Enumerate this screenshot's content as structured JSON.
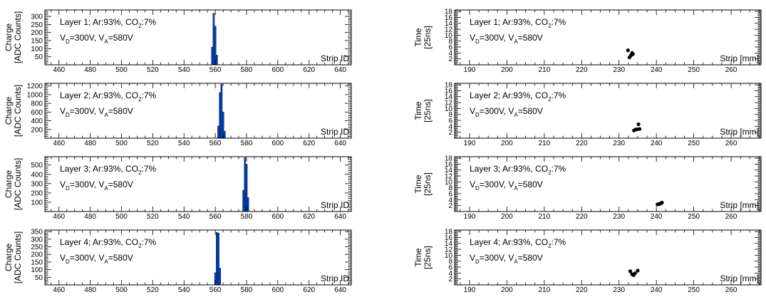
{
  "figure": {
    "colors": {
      "bar": "#0047c8",
      "point": "#000000",
      "frame": "#000000"
    }
  },
  "chart_data": [
    {
      "type": "bar",
      "panel": "layer1-charge",
      "ylabel_line1": "Charge",
      "ylabel_line2": "[ADC Counts]",
      "xlabel": "Strip ID",
      "xlim": [
        451,
        647
      ],
      "ylim": [
        0,
        340
      ],
      "xticks": [
        460,
        480,
        500,
        520,
        540,
        560,
        580,
        600,
        620,
        640
      ],
      "yticks": [
        50,
        100,
        150,
        200,
        250,
        300
      ],
      "annotation": {
        "layer": "Layer 1; Ar:93%, CO",
        "co2_sub": "2",
        "co2_pct": ":7%",
        "vd": "V",
        "vd_sub": "D",
        "vd_val": "=300V, V",
        "va_sub": "A",
        "va_val": "=580V"
      },
      "bars": [
        [
          558,
          110
        ],
        [
          559,
          320
        ],
        [
          560,
          240
        ],
        [
          561,
          60
        ]
      ]
    },
    {
      "type": "bar",
      "panel": "layer2-charge",
      "ylabel_line1": "Charge",
      "ylabel_line2": "[ADC Counts]",
      "xlabel": "Strip ID",
      "xlim": [
        451,
        647
      ],
      "ylim": [
        0,
        1260
      ],
      "xticks": [
        460,
        480,
        500,
        520,
        540,
        560,
        580,
        600,
        620,
        640
      ],
      "yticks": [
        200,
        400,
        600,
        800,
        1000,
        1200
      ],
      "annotation": {
        "layer": "Layer 2; Ar:93%, CO",
        "co2_sub": "2",
        "co2_pct": ":7%",
        "vd": "V",
        "vd_sub": "D",
        "vd_val": "=300V, V",
        "va_sub": "A",
        "va_val": "=580V"
      },
      "bars": [
        [
          562,
          280
        ],
        [
          563,
          1050
        ],
        [
          564,
          1240
        ],
        [
          565,
          600
        ],
        [
          566,
          160
        ]
      ]
    },
    {
      "type": "bar",
      "panel": "layer3-charge",
      "ylabel_line1": "Charge",
      "ylabel_line2": "[ADC Counts]",
      "xlabel": "Strip ID",
      "xlim": [
        451,
        647
      ],
      "ylim": [
        0,
        590
      ],
      "xticks": [
        460,
        480,
        500,
        520,
        540,
        560,
        580,
        600,
        620,
        640
      ],
      "yticks": [
        100,
        200,
        300,
        400,
        500
      ],
      "annotation": {
        "layer": "Layer 3; Ar:93%, CO",
        "co2_sub": "2",
        "co2_pct": ":7%",
        "vd": "V",
        "vd_sub": "D",
        "vd_val": "=300V, V",
        "va_sub": "A",
        "va_val": "=580V"
      },
      "bars": [
        [
          578,
          230
        ],
        [
          579,
          580
        ],
        [
          580,
          510
        ],
        [
          581,
          150
        ]
      ]
    },
    {
      "type": "bar",
      "panel": "layer4-charge",
      "ylabel_line1": "Charge",
      "ylabel_line2": "[ADC Counts]",
      "xlabel": "Strip ID",
      "xlim": [
        451,
        647
      ],
      "ylim": [
        0,
        360
      ],
      "xticks": [
        460,
        480,
        500,
        520,
        540,
        560,
        580,
        600,
        620,
        640
      ],
      "yticks": [
        50,
        100,
        150,
        200,
        250,
        300,
        350
      ],
      "annotation": {
        "layer": "Layer 4; Ar:93%, CO",
        "co2_sub": "2",
        "co2_pct": ":7%",
        "vd": "V",
        "vd_sub": "D",
        "vd_val": "=300V, V",
        "va_sub": "A",
        "va_val": "=580V"
      },
      "bars": [
        [
          560,
          80
        ],
        [
          561,
          345
        ],
        [
          562,
          340
        ],
        [
          563,
          110
        ]
      ]
    },
    {
      "type": "scatter",
      "panel": "layer1-time",
      "ylabel_line1": "Time",
      "ylabel_line2": "[25ns]",
      "xlabel": "Strip [mm]",
      "xlim": [
        186,
        268
      ],
      "ylim": [
        0,
        18.5
      ],
      "xticks": [
        190,
        200,
        210,
        220,
        230,
        240,
        250,
        260
      ],
      "yticks": [
        2,
        4,
        6,
        8,
        10,
        12,
        14,
        16,
        18
      ],
      "annotation": {
        "layer": "Layer 1; Ar:93%, CO",
        "co2_sub": "2",
        "co2_pct": ":7%",
        "vd": "V",
        "vd_sub": "D",
        "vd_val": "=300V, V",
        "va_sub": "A",
        "va_val": "=580V"
      },
      "points": [
        [
          232.4,
          4.9
        ],
        [
          232.8,
          2.5
        ],
        [
          233.2,
          3.2
        ],
        [
          233.5,
          4.0
        ],
        [
          233.7,
          3.6
        ]
      ]
    },
    {
      "type": "scatter",
      "panel": "layer2-time",
      "ylabel_line1": "Time",
      "ylabel_line2": "[25ns]",
      "xlabel": "Strip [mm]",
      "xlim": [
        186,
        268
      ],
      "ylim": [
        0,
        18.5
      ],
      "xticks": [
        190,
        200,
        210,
        220,
        230,
        240,
        250,
        260
      ],
      "yticks": [
        2,
        4,
        6,
        8,
        10,
        12,
        14,
        16,
        18
      ],
      "annotation": {
        "layer": "Layer 2; Ar:93%, CO",
        "co2_sub": "2",
        "co2_pct": ":7%",
        "vd": "V",
        "vd_sub": "D",
        "vd_val": "=300V, V",
        "va_sub": "A",
        "va_val": "=580V"
      },
      "points": [
        [
          234.0,
          2.6
        ],
        [
          234.4,
          2.9
        ],
        [
          234.8,
          3.0
        ],
        [
          235.2,
          4.7
        ],
        [
          235.5,
          3.1
        ]
      ]
    },
    {
      "type": "scatter",
      "panel": "layer3-time",
      "ylabel_line1": "Time",
      "ylabel_line2": "[25ns]",
      "xlabel": "Strip [mm]",
      "xlim": [
        186,
        268
      ],
      "ylim": [
        0,
        18.5
      ],
      "xticks": [
        190,
        200,
        210,
        220,
        230,
        240,
        250,
        260
      ],
      "yticks": [
        2,
        4,
        6,
        8,
        10,
        12,
        14,
        16,
        18
      ],
      "annotation": {
        "layer": "Layer 3; Ar:93%, CO",
        "co2_sub": "2",
        "co2_pct": ":7%",
        "vd": "V",
        "vd_sub": "D",
        "vd_val": "=300V, V",
        "va_sub": "A",
        "va_val": "=580V"
      },
      "points": [
        [
          240.3,
          2.4
        ],
        [
          240.7,
          2.5
        ],
        [
          241.1,
          2.7
        ],
        [
          241.5,
          3.0
        ]
      ]
    },
    {
      "type": "scatter",
      "panel": "layer4-time",
      "ylabel_line1": "Time",
      "ylabel_line2": "[25ns]",
      "xlabel": "Strip [mm]",
      "xlim": [
        186,
        268
      ],
      "ylim": [
        0,
        18.5
      ],
      "xticks": [
        190,
        200,
        210,
        220,
        230,
        240,
        250,
        260
      ],
      "yticks": [
        2,
        4,
        6,
        8,
        10,
        12,
        14,
        16,
        18
      ],
      "annotation": {
        "layer": "Layer 4; Ar:93%, CO",
        "co2_sub": "2",
        "co2_pct": ":7%",
        "vd": "V",
        "vd_sub": "D",
        "vd_val": "=300V, V",
        "va_sub": "A",
        "va_val": "=580V"
      },
      "points": [
        [
          233.0,
          4.6
        ],
        [
          233.5,
          3.6
        ],
        [
          233.9,
          3.3
        ],
        [
          234.3,
          3.9
        ],
        [
          235.0,
          4.8
        ]
      ]
    }
  ]
}
